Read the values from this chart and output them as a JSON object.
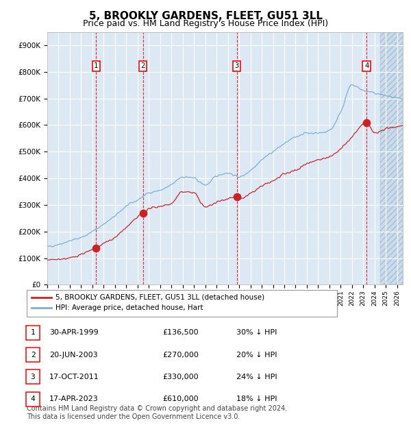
{
  "title": "5, BROOKLY GARDENS, FLEET, GU51 3LL",
  "subtitle": "Price paid vs. HM Land Registry's House Price Index (HPI)",
  "title_fontsize": 11,
  "subtitle_fontsize": 9,
  "hpi_color": "#7ab0d4",
  "price_color": "#cc2222",
  "bg_color": "#dce9f5",
  "grid_color": "#ffffff",
  "ylabel_vals": [
    0,
    100000,
    200000,
    300000,
    400000,
    500000,
    600000,
    700000,
    800000,
    900000
  ],
  "ylabel_labels": [
    "£0",
    "£100K",
    "£200K",
    "£300K",
    "£400K",
    "£500K",
    "£600K",
    "£700K",
    "£800K",
    "£900K"
  ],
  "xlim_start": 1995.0,
  "xlim_end": 2026.5,
  "ylim_min": 0,
  "ylim_max": 950000,
  "hatch_start": 2024.5,
  "purchases": [
    {
      "label": "1",
      "year": 1999.33,
      "price": 136500,
      "date_str": "30-APR-1999",
      "price_str": "£136,500",
      "pct_str": "30% ↓ HPI"
    },
    {
      "label": "2",
      "year": 2003.47,
      "price": 270000,
      "date_str": "20-JUN-2003",
      "price_str": "£270,000",
      "pct_str": "20% ↓ HPI"
    },
    {
      "label": "3",
      "year": 2011.79,
      "price": 330000,
      "date_str": "17-OCT-2011",
      "price_str": "£330,000",
      "pct_str": "24% ↓ HPI"
    },
    {
      "label": "4",
      "year": 2023.29,
      "price": 610000,
      "date_str": "17-APR-2023",
      "price_str": "£610,000",
      "pct_str": "18% ↓ HPI"
    }
  ],
  "legend_entries": [
    {
      "label": "5, BROOKLY GARDENS, FLEET, GU51 3LL (detached house)",
      "color": "#cc2222"
    },
    {
      "label": "HPI: Average price, detached house, Hart",
      "color": "#7ab0d4"
    }
  ],
  "footer": "Contains HM Land Registry data © Crown copyright and database right 2024.\nThis data is licensed under the Open Government Licence v3.0.",
  "footer_fontsize": 7.0
}
